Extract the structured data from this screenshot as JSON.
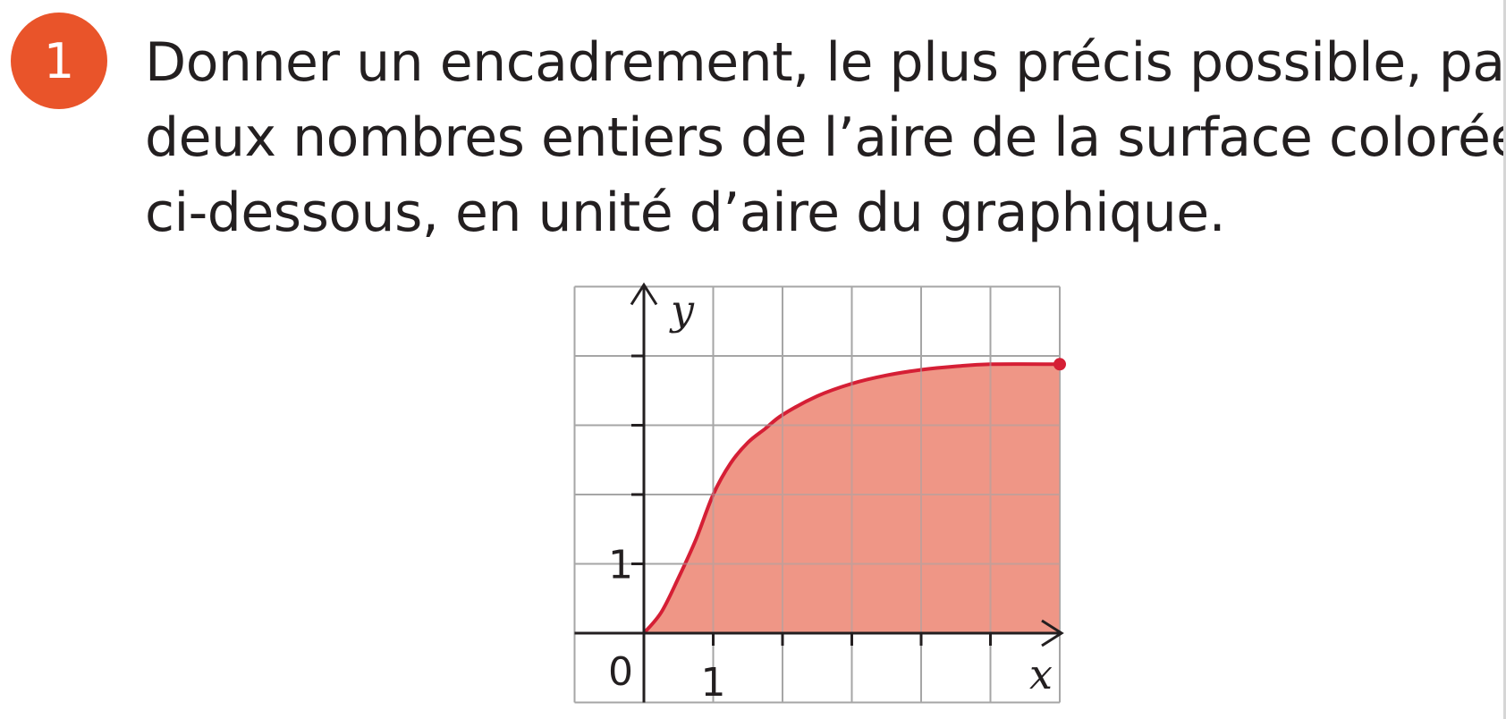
{
  "exercise": {
    "number": "1"
  },
  "statement": {
    "lines": [
      "Donner un encadrement, le plus précis possible, par",
      "deux nombres entiers de l’aire de la surface colorée",
      "ci-dessous, en unité d’aire du graphique."
    ]
  },
  "chart_data": {
    "type": "area",
    "xlabel": "x",
    "ylabel": "y",
    "xlim": [
      -1,
      6
    ],
    "ylim": [
      -1,
      5
    ],
    "grid": true,
    "origin_label": "0",
    "x_tick_label": "1",
    "y_tick_label": "1",
    "curve": {
      "x": [
        0,
        0.25,
        0.5,
        0.75,
        1,
        1.25,
        1.5,
        1.75,
        2,
        2.5,
        3,
        3.5,
        4,
        4.5,
        5,
        6
      ],
      "y": [
        0,
        0.3,
        0.8,
        1.35,
        2.0,
        2.45,
        2.75,
        2.95,
        3.15,
        3.42,
        3.6,
        3.72,
        3.8,
        3.85,
        3.88,
        3.88
      ]
    },
    "shaded_range": [
      0,
      6
    ],
    "end_point": {
      "x": 6,
      "y": 3.88
    },
    "colors": {
      "curve": "#d51f35",
      "fill": "#ef9686",
      "grid": "#a6a6a6",
      "axis": "#231f20"
    }
  }
}
